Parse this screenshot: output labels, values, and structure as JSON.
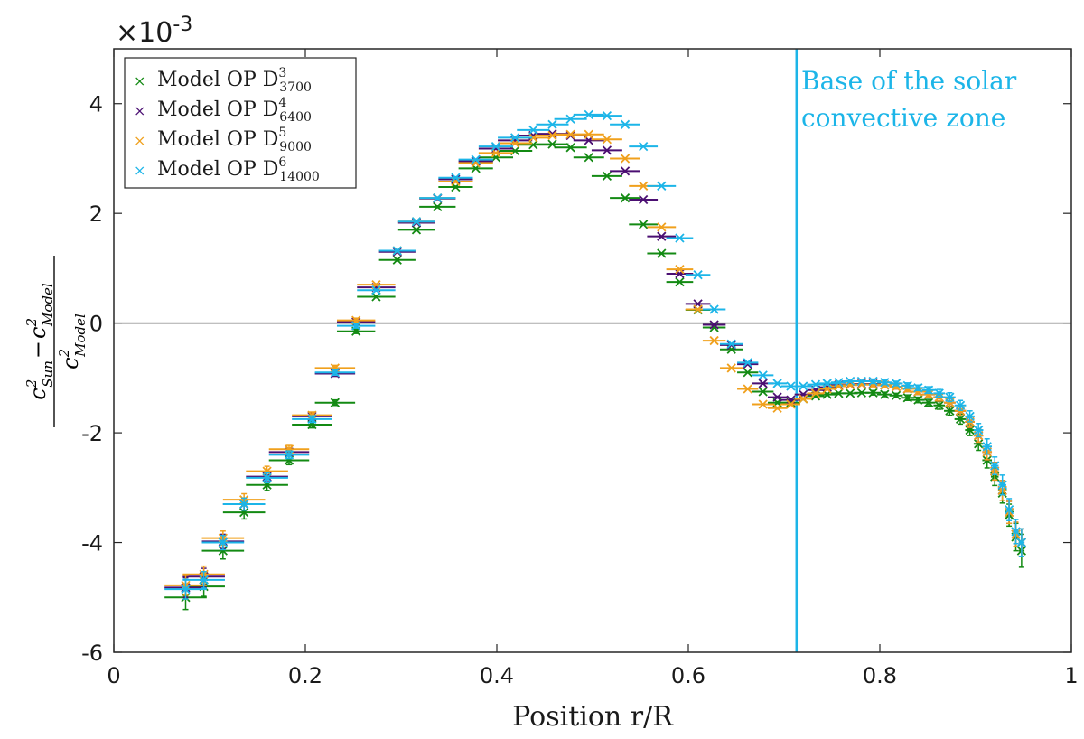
{
  "chart_data": {
    "type": "scatter",
    "title": "",
    "xlabel": "Position r/R",
    "ylabel": {
      "numerator": "c²Sun − c²Model",
      "denominator": "c²Model",
      "n_base": "c",
      "n_sup": "2",
      "n_sub": "Sun",
      "minus": "−",
      "d_base": "c",
      "d_sup": "2",
      "d_sub": "Model"
    },
    "y_multiplier": {
      "base": "×10",
      "exp": "-3"
    },
    "xlim": [
      0,
      1
    ],
    "ylim": [
      -6,
      5
    ],
    "x_ticks": [
      0,
      0.2,
      0.4,
      0.6,
      0.8,
      1
    ],
    "x_tick_labels": [
      "0",
      "0.2",
      "0.4",
      "0.6",
      "0.8",
      "1"
    ],
    "y_ticks": [
      -6,
      -4,
      -2,
      0,
      2,
      4
    ],
    "y_tick_labels": [
      "-6",
      "-4",
      "-2",
      "0",
      "2",
      "4"
    ],
    "zero_line": 0,
    "vline": {
      "x": 0.713,
      "color": "#1cb5e8"
    },
    "annotation": [
      "Base of the solar",
      "convective zone"
    ],
    "legend_position": "top-left",
    "series": [
      {
        "name": "Model OP D",
        "sup": "3",
        "sub": "3700",
        "color": "#138a13",
        "x": [
          0.075,
          0.094,
          0.114,
          0.136,
          0.16,
          0.183,
          0.207,
          0.231,
          0.253,
          0.274,
          0.296,
          0.316,
          0.338,
          0.357,
          0.378,
          0.399,
          0.419,
          0.438,
          0.458,
          0.477,
          0.496,
          0.515,
          0.534,
          0.553,
          0.572,
          0.591,
          0.61,
          0.627,
          0.645,
          0.662,
          0.678,
          0.693,
          0.707,
          0.72,
          0.733,
          0.745,
          0.757,
          0.769,
          0.781,
          0.793,
          0.805,
          0.817,
          0.829,
          0.84,
          0.851,
          0.862,
          0.873,
          0.884,
          0.894,
          0.903,
          0.912,
          0.92,
          0.928,
          0.935,
          0.942,
          0.948
        ],
        "y": [
          -5.0,
          -4.8,
          -4.15,
          -3.45,
          -2.95,
          -2.5,
          -1.85,
          -1.45,
          -0.15,
          0.48,
          1.15,
          1.7,
          2.12,
          2.48,
          2.82,
          3.02,
          3.14,
          3.25,
          3.26,
          3.2,
          3.02,
          2.68,
          2.28,
          1.8,
          1.27,
          0.75,
          0.24,
          -0.08,
          -0.48,
          -0.9,
          -1.25,
          -1.45,
          -1.45,
          -1.38,
          -1.33,
          -1.3,
          -1.28,
          -1.28,
          -1.27,
          -1.27,
          -1.3,
          -1.32,
          -1.36,
          -1.4,
          -1.45,
          -1.5,
          -1.6,
          -1.75,
          -1.95,
          -2.2,
          -2.5,
          -2.8,
          -3.1,
          -3.5,
          -3.9,
          -4.15
        ],
        "xerr": [
          0.022,
          0.022,
          0.022,
          0.022,
          0.022,
          0.021,
          0.021,
          0.021,
          0.02,
          0.02,
          0.019,
          0.019,
          0.019,
          0.018,
          0.018,
          0.018,
          0.018,
          0.017,
          0.017,
          0.017,
          0.016,
          0.016,
          0.016,
          0.015,
          0.015,
          0.014,
          0.013,
          0.012,
          0.012,
          0.011,
          0.011,
          0.01,
          0.01,
          0.009,
          0.009,
          0.009,
          0.008,
          0.008,
          0.008,
          0.008,
          0.008,
          0.007,
          0.007,
          0.007,
          0.007,
          0.006,
          0.006,
          0.006,
          0.005,
          0.005,
          0.005,
          0.004,
          0.004,
          0.003,
          0.003,
          0.003
        ],
        "yerr": [
          0.22,
          0.18,
          0.15,
          0.12,
          0.1,
          0.08,
          0.06,
          0.05,
          0.04,
          0.03,
          0.03,
          0.03,
          0.03,
          0.03,
          0.02,
          0.02,
          0.02,
          0.02,
          0.02,
          0.02,
          0.02,
          0.02,
          0.02,
          0.02,
          0.02,
          0.02,
          0.02,
          0.02,
          0.02,
          0.02,
          0.02,
          0.03,
          0.03,
          0.03,
          0.03,
          0.03,
          0.03,
          0.03,
          0.03,
          0.04,
          0.04,
          0.04,
          0.05,
          0.05,
          0.06,
          0.07,
          0.08,
          0.09,
          0.1,
          0.12,
          0.14,
          0.16,
          0.18,
          0.2,
          0.25,
          0.3
        ]
      },
      {
        "name": "Model OP D",
        "sup": "4",
        "sub": "6400",
        "color": "#4b0f72",
        "x": [
          0.075,
          0.094,
          0.114,
          0.136,
          0.16,
          0.183,
          0.207,
          0.231,
          0.253,
          0.274,
          0.296,
          0.316,
          0.338,
          0.357,
          0.378,
          0.399,
          0.419,
          0.438,
          0.458,
          0.477,
          0.496,
          0.515,
          0.534,
          0.553,
          0.572,
          0.591,
          0.61,
          0.627,
          0.645,
          0.662,
          0.678,
          0.693,
          0.707,
          0.72,
          0.733,
          0.745,
          0.757,
          0.769,
          0.781,
          0.793,
          0.805,
          0.817,
          0.829,
          0.84,
          0.851,
          0.862,
          0.873,
          0.884,
          0.894,
          0.903,
          0.912,
          0.92,
          0.928,
          0.935,
          0.942,
          0.948
        ],
        "y": [
          -4.82,
          -4.62,
          -3.98,
          -3.3,
          -2.8,
          -2.35,
          -1.7,
          -0.92,
          0.02,
          0.65,
          1.3,
          1.83,
          2.27,
          2.62,
          2.95,
          3.18,
          3.33,
          3.42,
          3.45,
          3.42,
          3.33,
          3.15,
          2.77,
          2.25,
          1.58,
          0.9,
          0.35,
          -0.03,
          -0.4,
          -0.75,
          -1.1,
          -1.35,
          -1.4,
          -1.3,
          -1.22,
          -1.17,
          -1.13,
          -1.12,
          -1.11,
          -1.11,
          -1.13,
          -1.16,
          -1.2,
          -1.25,
          -1.3,
          -1.35,
          -1.45,
          -1.6,
          -1.8,
          -2.05,
          -2.35,
          -2.7,
          -3.05,
          -3.45,
          -3.85,
          -4.0
        ],
        "xerr": [
          0.022,
          0.022,
          0.022,
          0.022,
          0.022,
          0.021,
          0.021,
          0.021,
          0.02,
          0.02,
          0.019,
          0.019,
          0.019,
          0.018,
          0.018,
          0.018,
          0.018,
          0.017,
          0.017,
          0.017,
          0.016,
          0.016,
          0.016,
          0.015,
          0.015,
          0.014,
          0.013,
          0.012,
          0.012,
          0.011,
          0.011,
          0.01,
          0.01,
          0.009,
          0.009,
          0.009,
          0.008,
          0.008,
          0.008,
          0.008,
          0.008,
          0.007,
          0.007,
          0.007,
          0.007,
          0.006,
          0.006,
          0.006,
          0.005,
          0.005,
          0.005,
          0.004,
          0.004,
          0.003,
          0.003,
          0.003
        ],
        "yerr": [
          0.18,
          0.15,
          0.13,
          0.11,
          0.09,
          0.07,
          0.06,
          0.05,
          0.04,
          0.03,
          0.03,
          0.03,
          0.03,
          0.03,
          0.02,
          0.02,
          0.02,
          0.02,
          0.02,
          0.02,
          0.02,
          0.02,
          0.02,
          0.02,
          0.02,
          0.02,
          0.02,
          0.02,
          0.02,
          0.02,
          0.02,
          0.03,
          0.03,
          0.03,
          0.03,
          0.03,
          0.03,
          0.03,
          0.03,
          0.04,
          0.04,
          0.04,
          0.05,
          0.05,
          0.06,
          0.07,
          0.08,
          0.09,
          0.1,
          0.12,
          0.14,
          0.16,
          0.18,
          0.2,
          0.22,
          0.25
        ]
      },
      {
        "name": "Model OP D",
        "sup": "5",
        "sub": "9000",
        "color": "#f0a01c",
        "x": [
          0.075,
          0.094,
          0.114,
          0.136,
          0.16,
          0.183,
          0.207,
          0.231,
          0.253,
          0.274,
          0.296,
          0.316,
          0.338,
          0.357,
          0.378,
          0.399,
          0.419,
          0.438,
          0.458,
          0.477,
          0.496,
          0.515,
          0.534,
          0.553,
          0.572,
          0.591,
          0.61,
          0.627,
          0.645,
          0.662,
          0.678,
          0.693,
          0.707,
          0.72,
          0.733,
          0.745,
          0.757,
          0.769,
          0.781,
          0.793,
          0.805,
          0.817,
          0.829,
          0.84,
          0.851,
          0.862,
          0.873,
          0.884,
          0.894,
          0.903,
          0.912,
          0.92,
          0.928,
          0.935,
          0.942,
          0.948
        ],
        "y": [
          -4.78,
          -4.58,
          -3.92,
          -3.22,
          -2.7,
          -2.3,
          -1.68,
          -0.82,
          0.05,
          0.7,
          1.32,
          1.85,
          2.28,
          2.58,
          2.92,
          3.1,
          3.28,
          3.38,
          3.42,
          3.44,
          3.44,
          3.35,
          3.0,
          2.5,
          1.75,
          0.98,
          0.25,
          -0.32,
          -0.82,
          -1.2,
          -1.48,
          -1.55,
          -1.48,
          -1.38,
          -1.28,
          -1.2,
          -1.15,
          -1.13,
          -1.12,
          -1.12,
          -1.13,
          -1.16,
          -1.2,
          -1.25,
          -1.3,
          -1.35,
          -1.45,
          -1.6,
          -1.8,
          -2.05,
          -2.35,
          -2.7,
          -3.05,
          -3.45,
          -3.85,
          -4.0
        ],
        "xerr": [
          0.022,
          0.022,
          0.022,
          0.022,
          0.022,
          0.021,
          0.021,
          0.021,
          0.02,
          0.02,
          0.019,
          0.019,
          0.019,
          0.018,
          0.018,
          0.018,
          0.018,
          0.017,
          0.017,
          0.017,
          0.016,
          0.016,
          0.016,
          0.015,
          0.015,
          0.014,
          0.013,
          0.012,
          0.012,
          0.011,
          0.011,
          0.01,
          0.01,
          0.009,
          0.009,
          0.009,
          0.008,
          0.008,
          0.008,
          0.008,
          0.008,
          0.007,
          0.007,
          0.007,
          0.007,
          0.006,
          0.006,
          0.006,
          0.005,
          0.005,
          0.005,
          0.004,
          0.004,
          0.003,
          0.003,
          0.003
        ],
        "yerr": [
          0.18,
          0.15,
          0.13,
          0.11,
          0.09,
          0.07,
          0.06,
          0.05,
          0.04,
          0.03,
          0.03,
          0.03,
          0.03,
          0.03,
          0.02,
          0.02,
          0.02,
          0.02,
          0.02,
          0.02,
          0.02,
          0.02,
          0.02,
          0.02,
          0.02,
          0.02,
          0.02,
          0.02,
          0.02,
          0.02,
          0.02,
          0.03,
          0.03,
          0.03,
          0.03,
          0.03,
          0.03,
          0.03,
          0.03,
          0.04,
          0.04,
          0.04,
          0.05,
          0.05,
          0.06,
          0.07,
          0.08,
          0.09,
          0.1,
          0.12,
          0.14,
          0.16,
          0.18,
          0.2,
          0.22,
          0.25
        ]
      },
      {
        "name": "Model OP D",
        "sup": "6",
        "sub": "14000",
        "color": "#1cb5e8",
        "x": [
          0.075,
          0.094,
          0.114,
          0.136,
          0.16,
          0.183,
          0.207,
          0.231,
          0.253,
          0.274,
          0.296,
          0.316,
          0.338,
          0.357,
          0.378,
          0.399,
          0.419,
          0.438,
          0.458,
          0.477,
          0.496,
          0.515,
          0.534,
          0.553,
          0.572,
          0.591,
          0.61,
          0.627,
          0.645,
          0.662,
          0.678,
          0.693,
          0.707,
          0.72,
          0.733,
          0.745,
          0.757,
          0.769,
          0.781,
          0.793,
          0.805,
          0.817,
          0.829,
          0.84,
          0.851,
          0.862,
          0.873,
          0.884,
          0.894,
          0.903,
          0.912,
          0.92,
          0.928,
          0.935,
          0.942,
          0.948
        ],
        "y": [
          -4.85,
          -4.68,
          -4.0,
          -3.3,
          -2.82,
          -2.4,
          -1.75,
          -0.9,
          -0.05,
          0.6,
          1.32,
          1.85,
          2.28,
          2.65,
          2.98,
          3.22,
          3.38,
          3.52,
          3.62,
          3.72,
          3.8,
          3.78,
          3.62,
          3.22,
          2.5,
          1.55,
          0.88,
          0.25,
          -0.38,
          -0.72,
          -0.95,
          -1.1,
          -1.15,
          -1.15,
          -1.12,
          -1.1,
          -1.08,
          -1.06,
          -1.06,
          -1.06,
          -1.08,
          -1.1,
          -1.14,
          -1.18,
          -1.22,
          -1.28,
          -1.35,
          -1.5,
          -1.7,
          -1.95,
          -2.25,
          -2.6,
          -2.95,
          -3.4,
          -3.8,
          -4.0
        ],
        "xerr": [
          0.022,
          0.022,
          0.022,
          0.022,
          0.022,
          0.021,
          0.021,
          0.021,
          0.02,
          0.02,
          0.019,
          0.019,
          0.019,
          0.018,
          0.018,
          0.018,
          0.018,
          0.017,
          0.017,
          0.017,
          0.016,
          0.016,
          0.016,
          0.015,
          0.015,
          0.014,
          0.013,
          0.012,
          0.012,
          0.011,
          0.011,
          0.01,
          0.01,
          0.009,
          0.009,
          0.009,
          0.008,
          0.008,
          0.008,
          0.008,
          0.008,
          0.007,
          0.007,
          0.007,
          0.007,
          0.006,
          0.006,
          0.006,
          0.005,
          0.005,
          0.005,
          0.004,
          0.004,
          0.003,
          0.003,
          0.003
        ],
        "yerr": [
          0.18,
          0.15,
          0.13,
          0.11,
          0.09,
          0.07,
          0.06,
          0.05,
          0.04,
          0.03,
          0.03,
          0.03,
          0.03,
          0.03,
          0.02,
          0.02,
          0.02,
          0.02,
          0.02,
          0.02,
          0.02,
          0.02,
          0.02,
          0.02,
          0.02,
          0.02,
          0.02,
          0.02,
          0.02,
          0.02,
          0.02,
          0.03,
          0.03,
          0.03,
          0.03,
          0.03,
          0.03,
          0.03,
          0.03,
          0.04,
          0.04,
          0.04,
          0.05,
          0.05,
          0.06,
          0.07,
          0.08,
          0.09,
          0.1,
          0.12,
          0.14,
          0.16,
          0.18,
          0.2,
          0.22,
          0.25
        ]
      }
    ]
  }
}
